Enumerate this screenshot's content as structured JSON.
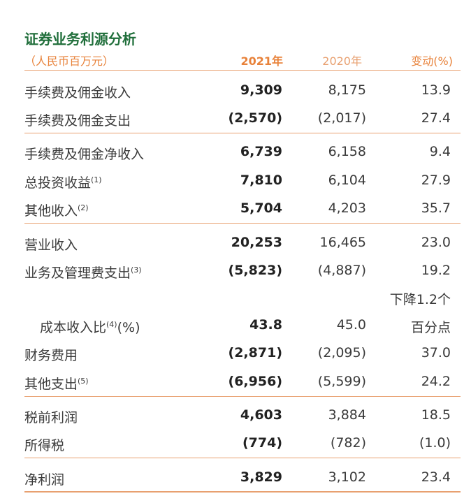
{
  "title": "证券业务利源分析",
  "header": {
    "unit": "（人民币百万元）",
    "y2021": "2021年",
    "y2020": "2020年",
    "change": "变动(%)"
  },
  "rows": [
    {
      "label": "手续费及佣金收入",
      "note": "",
      "v2021": "9,309",
      "v2020": "8,175",
      "change": "13.9"
    },
    {
      "label": "手续费及佣金支出",
      "note": "",
      "v2021": "(2,570)",
      "v2020": "(2,017)",
      "change": "27.4"
    },
    {
      "label": "手续费及佣金净收入",
      "note": "",
      "v2021": "6,739",
      "v2020": "6,158",
      "change": "9.4"
    },
    {
      "label": "总投资收益",
      "note": "(1)",
      "v2021": "7,810",
      "v2020": "6,104",
      "change": "27.9"
    },
    {
      "label": "其他收入",
      "note": "(2)",
      "v2021": "5,704",
      "v2020": "4,203",
      "change": "35.7"
    },
    {
      "label": "营业收入",
      "note": "",
      "v2021": "20,253",
      "v2020": "16,465",
      "change": "23.0"
    },
    {
      "label": "业务及管理费支出",
      "note": "(3)",
      "v2021": "(5,823)",
      "v2020": "(4,887)",
      "change": "19.2"
    },
    {
      "label": "成本收入比",
      "note": "(4)",
      "suffix": "(%)",
      "v2021": "43.8",
      "v2020": "45.0",
      "change_line1": "下降1.2个",
      "change_line2": "百分点"
    },
    {
      "label": "财务费用",
      "note": "",
      "v2021": "(2,871)",
      "v2020": "(2,095)",
      "change": "37.0"
    },
    {
      "label": "其他支出",
      "note": "(5)",
      "v2021": "(6,956)",
      "v2020": "(5,599)",
      "change": "24.2"
    },
    {
      "label": "税前利润",
      "note": "",
      "v2021": "4,603",
      "v2020": "3,884",
      "change": "18.5"
    },
    {
      "label": "所得税",
      "note": "",
      "v2021": "(774)",
      "v2020": "(782)",
      "change": "(1.0)"
    },
    {
      "label": "净利润",
      "note": "",
      "v2021": "3,829",
      "v2020": "3,102",
      "change": "23.4"
    }
  ]
}
